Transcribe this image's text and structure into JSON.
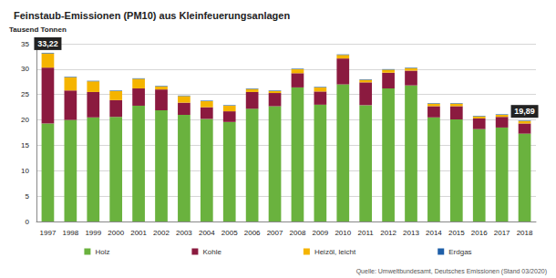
{
  "chart_data": {
    "type": "bar",
    "title": "Feinstaub-Emissionen (PM10) aus Kleinfeuerungsanlagen",
    "y_label": "Tausend Tonnen",
    "source": "Quelle: Umweltbundesamt, Deutsches Emissionen (Stand 03/2020)",
    "stacked": true,
    "grid": true,
    "legend": "bottom",
    "categories": [
      "1997",
      "1998",
      "1999",
      "2000",
      "2001",
      "2002",
      "2003",
      "2004",
      "2005",
      "2006",
      "2007",
      "2008",
      "2009",
      "2010",
      "2011",
      "2012",
      "2013",
      "2014",
      "2015",
      "2016",
      "2017",
      "2018"
    ],
    "series": [
      {
        "name": "Holz",
        "color": "#6ab23e",
        "values": [
          19.3,
          20.0,
          20.5,
          20.6,
          22.8,
          21.9,
          21.0,
          20.2,
          19.6,
          22.2,
          22.7,
          26.4,
          23.0,
          27.0,
          22.9,
          26.2,
          26.8,
          20.5,
          20.1,
          18.2,
          18.5,
          17.3
        ]
      },
      {
        "name": "Kohle",
        "color": "#8b1a3f",
        "values": [
          11.0,
          5.8,
          5.0,
          3.3,
          3.4,
          4.1,
          2.4,
          2.3,
          2.1,
          3.3,
          2.6,
          2.8,
          2.6,
          5.1,
          4.5,
          3.1,
          2.9,
          2.2,
          2.6,
          2.1,
          2.1,
          2.0
        ]
      },
      {
        "name": "Heizöl, leicht",
        "color": "#f5b400",
        "values": [
          2.8,
          2.6,
          2.1,
          1.8,
          1.9,
          0.6,
          1.3,
          1.2,
          1.1,
          0.6,
          0.4,
          0.8,
          0.8,
          0.7,
          0.5,
          0.6,
          0.5,
          0.5,
          0.5,
          0.4,
          0.4,
          0.5
        ]
      },
      {
        "name": "Erdgas",
        "color": "#1f5fa8",
        "values": [
          0.12,
          0.1,
          0.1,
          0.1,
          0.1,
          0.1,
          0.1,
          0.1,
          0.1,
          0.1,
          0.1,
          0.1,
          0.1,
          0.1,
          0.1,
          0.1,
          0.1,
          0.1,
          0.1,
          0.1,
          0.1,
          0.09
        ]
      }
    ],
    "annotations": [
      {
        "category": "1997",
        "value": 33.22,
        "label": "33,22"
      },
      {
        "category": "2018",
        "value": 19.89,
        "label": "19,89"
      }
    ],
    "ylim": [
      0,
      35
    ],
    "yticks": [
      0,
      5,
      10,
      15,
      20,
      25,
      30,
      35
    ]
  }
}
